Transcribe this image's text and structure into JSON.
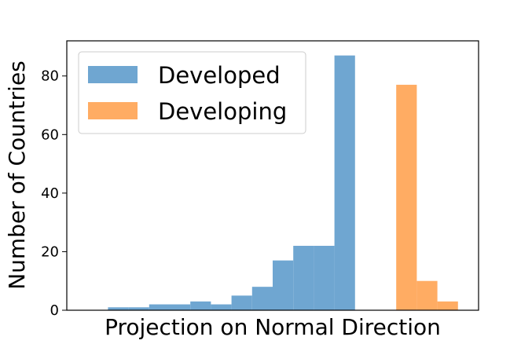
{
  "chart_data": {
    "type": "bar",
    "xlabel": "Projection on Normal Direction",
    "ylabel": "Number of Countries",
    "ylim": [
      0,
      92
    ],
    "yticks": [
      0,
      20,
      40,
      60,
      80
    ],
    "grid": false,
    "legend_position": "top-left",
    "bin_edges": [
      0,
      1,
      2,
      3,
      4,
      5,
      6,
      7,
      8,
      9,
      10,
      11,
      12,
      13,
      14,
      15,
      16,
      17,
      18,
      19,
      20
    ],
    "series": [
      {
        "name": "Developed",
        "color": "#6fa6d1",
        "bins": [
          {
            "bin": 2,
            "value": 1
          },
          {
            "bin": 3,
            "value": 1
          },
          {
            "bin": 4,
            "value": 2
          },
          {
            "bin": 5,
            "value": 2
          },
          {
            "bin": 6,
            "value": 3
          },
          {
            "bin": 7,
            "value": 2
          },
          {
            "bin": 8,
            "value": 5
          },
          {
            "bin": 9,
            "value": 8
          },
          {
            "bin": 10,
            "value": 17
          },
          {
            "bin": 11,
            "value": 22
          },
          {
            "bin": 12,
            "value": 22
          },
          {
            "bin": 13,
            "value": 87
          }
        ]
      },
      {
        "name": "Developing",
        "color": "#ffac63",
        "bins": [
          {
            "bin": 16,
            "value": 77
          },
          {
            "bin": 17,
            "value": 10
          },
          {
            "bin": 18,
            "value": 3
          }
        ]
      }
    ]
  }
}
